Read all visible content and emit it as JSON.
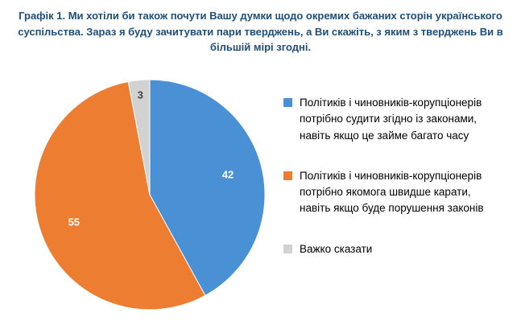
{
  "chart_data": {
    "type": "pie",
    "title": "Графік 1. Ми хотіли би також почути Вашу думки щодо окремих бажаних сторін українського суспільства. Зараз я буду зачитувати пари тверджень, а Ви скажіть, з яким з тверджень Ви в більшій мірі згодні.",
    "title_color": "#1F4E79",
    "start_angle_deg": 0,
    "direction": "clockwise",
    "legend_position": "right",
    "data_labels": "value",
    "total": 100,
    "slices": [
      {
        "label": "Політиків і чиновників-корупціонерів потрібно судити згідно із законами, навіть якщо це займе багато часу",
        "value": 42,
        "color": "#4A90D5",
        "label_color": "#FFFFFF"
      },
      {
        "label": "Політиків і чиновників-корупціонерів потрібно якомога швидше карати, навіть якщо буде порушення законів",
        "value": 55,
        "color": "#ED7D31",
        "label_color": "#FFFFFF"
      },
      {
        "label": "Важко сказати",
        "value": 3,
        "color": "#D2D2D2",
        "label_color": "#404040"
      }
    ]
  }
}
